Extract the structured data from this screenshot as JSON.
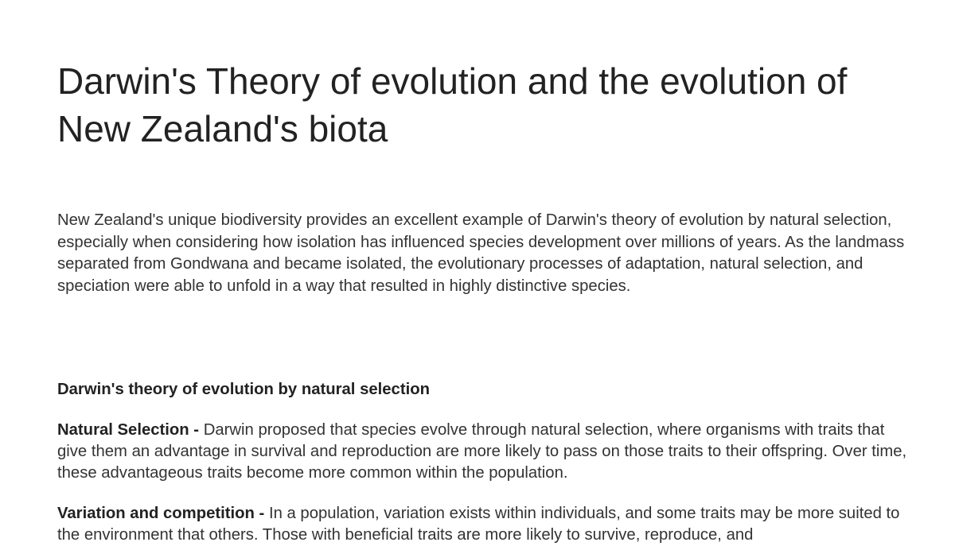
{
  "title": "Darwin's Theory of evolution and the evolution of New Zealand's biota",
  "intro": "New Zealand's unique biodiversity provides an excellent example of Darwin's theory of evolution by natural selection, especially when considering how isolation has influenced species development over millions of years. As the landmass separated from Gondwana and became isolated, the evolutionary processes of adaptation, natural selection, and speciation were able to unfold in a way that resulted in highly distinctive species.",
  "section_heading": "Darwin's theory of evolution by natural selection",
  "points": [
    {
      "term": "Natural Selection -",
      "text": " Darwin proposed that species evolve through natural selection, where organisms with traits that give them an advantage in survival and reproduction are more likely to pass on those traits to their offspring. Over time, these advantageous traits become more common within the population."
    },
    {
      "term": "Variation and competition -",
      "text": " In a population, variation exists within individuals, and some traits may be more suited to the environment that others. Those with beneficial traits are more likely to survive, reproduce, and"
    }
  ]
}
